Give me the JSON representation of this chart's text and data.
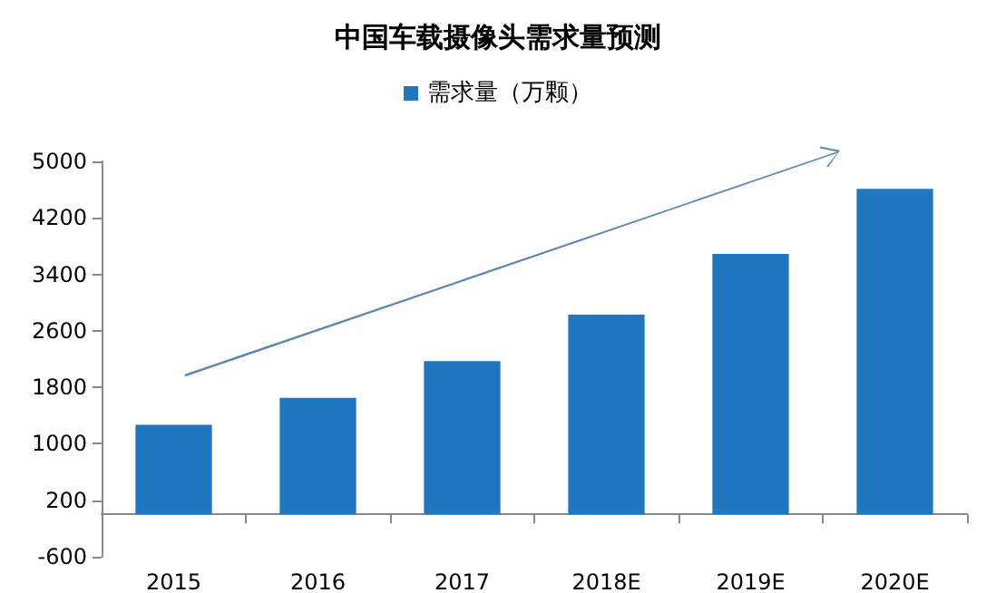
{
  "chart_data": {
    "type": "bar",
    "title": "中国车载摄像头需求量预测",
    "categories": [
      "2015",
      "2016",
      "2017",
      "2018E",
      "2019E",
      "2020E"
    ],
    "series": [
      {
        "name": "需求量（万颗）",
        "color": "#1f77bf",
        "values": [
          1270,
          1650,
          2170,
          2830,
          3690,
          4610
        ]
      }
    ],
    "ylim": [
      -600,
      5000
    ],
    "yticks": [
      -600,
      200,
      1000,
      1800,
      2600,
      3400,
      4200,
      5000
    ],
    "grid": false,
    "legend": "top"
  }
}
